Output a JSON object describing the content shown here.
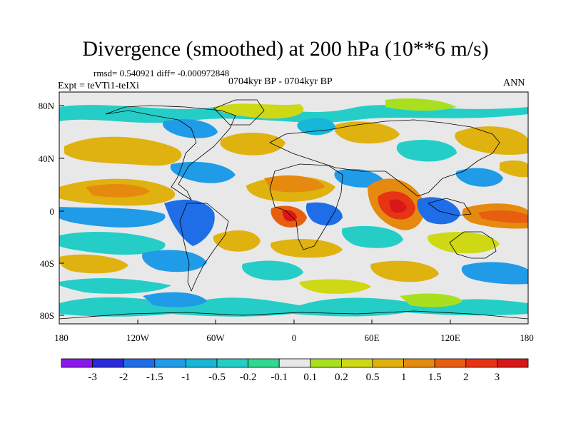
{
  "title": "Divergence (smoothed) at 200 hPa (10**6 m/s)",
  "stats": "rmsd= 0.540921 diff= -0.000972848",
  "period": "0704kyr BP - 0704kyr BP",
  "experiment": "Expt = teVTi1-teIXi",
  "season": "ANN",
  "axes": {
    "lat_labels": [
      "80N",
      "40N",
      "0",
      "40S",
      "80S"
    ],
    "lon_labels": [
      "180",
      "120W",
      "60W",
      "0",
      "60E",
      "120E",
      "180"
    ]
  },
  "colorbar": {
    "labels": [
      "-3",
      "-2",
      "-1.5",
      "-1",
      "-0.5",
      "-0.2",
      "-0.1",
      "0.1",
      "0.2",
      "0.5",
      "1",
      "1.5",
      "2",
      "3"
    ],
    "colors": [
      "#8b18e8",
      "#2a2ad8",
      "#1f6ee8",
      "#1f9be8",
      "#18b6d8",
      "#24cec6",
      "#30d890",
      "#e8e8e8",
      "#a8e020",
      "#cfd815",
      "#e0b210",
      "#e58a0e",
      "#e85e10",
      "#e63414",
      "#d81818"
    ]
  },
  "palette": {
    "neutral": "#e8e8e8",
    "coast": "#000000"
  }
}
